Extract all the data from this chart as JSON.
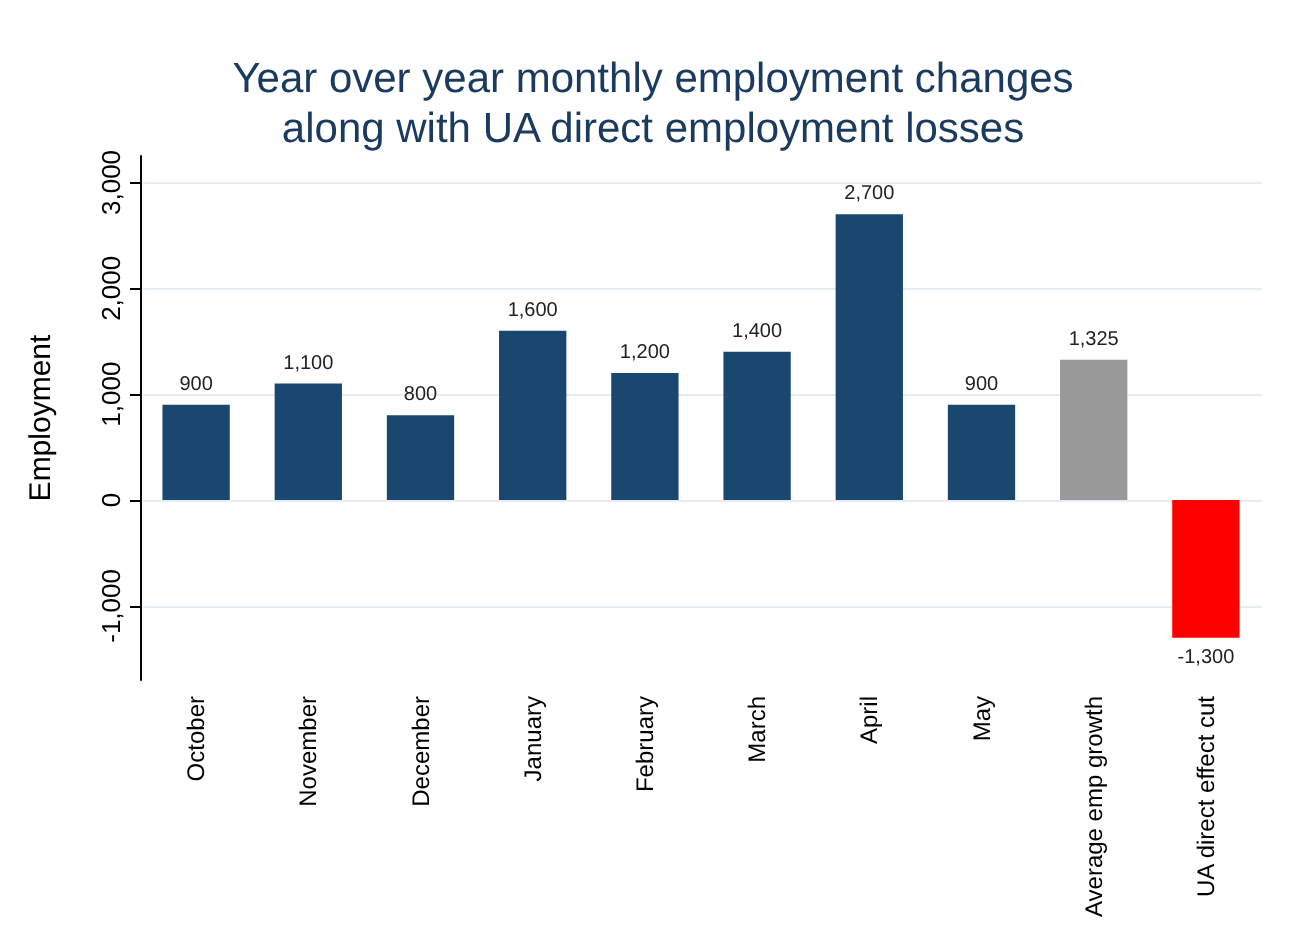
{
  "chart_data": {
    "type": "bar",
    "title": "Year over year monthly employment changes\nalong with UA direct employment losses",
    "ylabel": "Employment",
    "categories": [
      "October",
      "November",
      "December",
      "January",
      "February",
      "March",
      "April",
      "May",
      "Average emp growth",
      "UA direct effect cut"
    ],
    "values": [
      900,
      1100,
      800,
      1600,
      1200,
      1400,
      2700,
      900,
      1325,
      -1300
    ],
    "colors": [
      "#1a476f",
      "#1a476f",
      "#1a476f",
      "#1a476f",
      "#1a476f",
      "#1a476f",
      "#1a476f",
      "#1a476f",
      "#999999",
      "#ff0000"
    ],
    "value_labels": [
      "900",
      "1,100",
      "800",
      "1,600",
      "1,200",
      "1,400",
      "2,700",
      "900",
      "1,325",
      "-1,300"
    ],
    "ylim": [
      -1700,
      3250
    ],
    "yticks": [
      {
        "value": -1000,
        "label": "-1,000"
      },
      0,
      {
        "value": 1000,
        "label": "1,000"
      },
      {
        "value": 2000,
        "label": "2,000"
      },
      {
        "value": 3000,
        "label": "3,000"
      }
    ],
    "grid": "y"
  }
}
